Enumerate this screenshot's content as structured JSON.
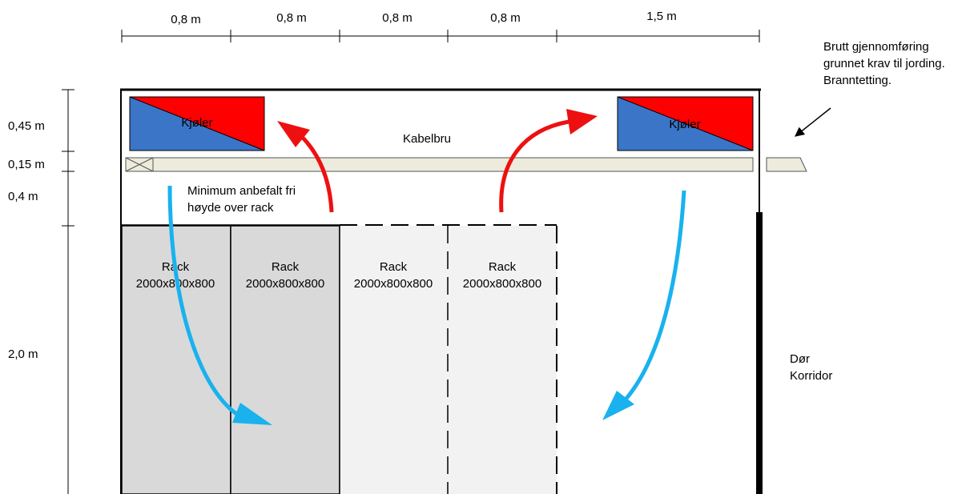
{
  "dimensions": {
    "top": [
      "0,8 m",
      "0,8 m",
      "0,8 m",
      "0,8 m",
      "1,5 m"
    ],
    "left": [
      "0,45 m",
      "0,15 m",
      "0,4 m",
      "2,0 m"
    ]
  },
  "coolers": [
    {
      "label": "Kjøler"
    },
    {
      "label": "Kjøler"
    }
  ],
  "cable_tray": {
    "label": "Kabelbru"
  },
  "clearance_note": [
    "Minimum anbefalt fri",
    "høyde over rack"
  ],
  "racks": [
    {
      "line1": "Rack",
      "line2": "2000x800x800",
      "style": "existing"
    },
    {
      "line1": "Rack",
      "line2": "2000x800x800",
      "style": "existing"
    },
    {
      "line1": "Rack",
      "line2": "2000x800x800",
      "style": "planned"
    },
    {
      "line1": "Rack",
      "line2": "2000x800x800",
      "style": "planned"
    }
  ],
  "penetration_note": [
    "Brutt gjennomføring",
    "grunnet krav til jording.",
    "Branntetting."
  ],
  "door": [
    "Dør",
    "Korridor"
  ],
  "colors": {
    "cold": "#3b75c8",
    "hot": "#ff0000",
    "cold_airflow": "#19b2ee",
    "hot_airflow": "#ee1010",
    "tray": "#ecebdc",
    "rack_existing": "#d9d9d9",
    "rack_planned": "#f2f2f2"
  }
}
